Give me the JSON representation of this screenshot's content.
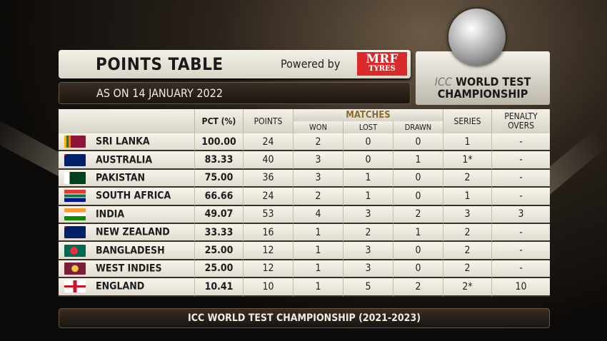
{
  "header": {
    "title": "POINTS TABLE",
    "powered_by": "Powered by",
    "sponsor_line1": "MRF",
    "sponsor_line2": "TYRES",
    "as_on": "AS ON 14 JANUARY 2022"
  },
  "logo": {
    "line1_prefix": "ICC",
    "line1": "WORLD TEST",
    "line2": "CHAMPIONSHIP"
  },
  "columns": {
    "pct": "PCT (%)",
    "points": "POINTS",
    "matches": "MATCHES",
    "won": "WON",
    "lost": "LOST",
    "drawn": "DRAWN",
    "series": "SERIES",
    "penalty": "PENALTY OVERS"
  },
  "rows": [
    {
      "team": "SRI LANKA",
      "flag": "sri-lanka-flag",
      "pct": "100.00",
      "points": "24",
      "won": "2",
      "lost": "0",
      "drawn": "0",
      "series": "1",
      "penalty": "-"
    },
    {
      "team": "AUSTRALIA",
      "flag": "australia-flag",
      "pct": "83.33",
      "points": "40",
      "won": "3",
      "lost": "0",
      "drawn": "1",
      "series": "1*",
      "penalty": "-"
    },
    {
      "team": "PAKISTAN",
      "flag": "pakistan-flag",
      "pct": "75.00",
      "points": "36",
      "won": "3",
      "lost": "1",
      "drawn": "0",
      "series": "2",
      "penalty": "-"
    },
    {
      "team": "SOUTH AFRICA",
      "flag": "south-africa-flag",
      "pct": "66.66",
      "points": "24",
      "won": "2",
      "lost": "1",
      "drawn": "0",
      "series": "1",
      "penalty": "-"
    },
    {
      "team": "INDIA",
      "flag": "india-flag",
      "pct": "49.07",
      "points": "53",
      "won": "4",
      "lost": "3",
      "drawn": "2",
      "series": "3",
      "penalty": "3"
    },
    {
      "team": "NEW ZEALAND",
      "flag": "new-zealand-flag",
      "pct": "33.33",
      "points": "16",
      "won": "1",
      "lost": "2",
      "drawn": "1",
      "series": "2",
      "penalty": "-"
    },
    {
      "team": "BANGLADESH",
      "flag": "bangladesh-flag",
      "pct": "25.00",
      "points": "12",
      "won": "1",
      "lost": "3",
      "drawn": "0",
      "series": "2",
      "penalty": "-"
    },
    {
      "team": "WEST INDIES",
      "flag": "west-indies-flag",
      "pct": "25.00",
      "points": "12",
      "won": "1",
      "lost": "3",
      "drawn": "0",
      "series": "2",
      "penalty": "-"
    },
    {
      "team": "ENGLAND",
      "flag": "england-flag",
      "pct": "10.41",
      "points": "10",
      "won": "1",
      "lost": "5",
      "drawn": "2",
      "series": "2*",
      "penalty": "10"
    }
  ],
  "footer": "ICC WORLD TEST CHAMPIONSHIP (2021-2023)",
  "colors": {
    "sponsor_red": "#d92b2b",
    "matches_gold": "#8a6d2a"
  }
}
